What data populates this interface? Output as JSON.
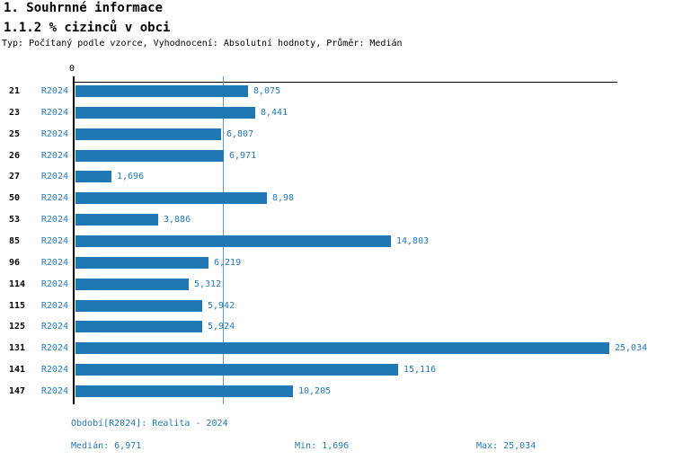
{
  "header": {
    "title": "1. Souhrnné informace",
    "subtitle": "1.1.2 % cizinců v obci",
    "meta": "Typ: Počítaný podle vzorce, Vyhodnocení: Absolutní hodnoty, Průměr: Medián"
  },
  "chart_data": {
    "type": "bar",
    "orientation": "horizontal",
    "title": "1.1.2 % cizinců v obci",
    "categories": [
      "21",
      "23",
      "25",
      "26",
      "27",
      "50",
      "53",
      "85",
      "96",
      "114",
      "115",
      "125",
      "131",
      "141",
      "147"
    ],
    "series": [
      {
        "name": "R2024",
        "values": [
          8.075,
          8.441,
          6.807,
          6.971,
          1.696,
          8.98,
          3.886,
          14.803,
          6.219,
          5.312,
          5.942,
          5.924,
          25.034,
          15.116,
          10.205
        ]
      }
    ],
    "value_labels": [
      "8,075",
      "8,441",
      "6,807",
      "6,971",
      "1,696",
      "8,98",
      "3,886",
      "14,803",
      "6,219",
      "5,312",
      "5,942",
      "5,924",
      "25,034",
      "15,116",
      "10,205"
    ],
    "x_tick_labels": [
      "0"
    ],
    "xlim": [
      0,
      25.034
    ],
    "median": 6.971,
    "min": 1.696,
    "max": 25.034,
    "grid": false,
    "legend_position": "none",
    "bar_color": "#1f77b4",
    "median_line_color": "#5b9bc9",
    "zero_tick_label": "0"
  },
  "footer": {
    "period": "Období[R2024]: Realita - 2024",
    "median_label": "Medián: 6,971",
    "min_label": "Min: 1,696",
    "max_label": "Max: 25,034"
  }
}
